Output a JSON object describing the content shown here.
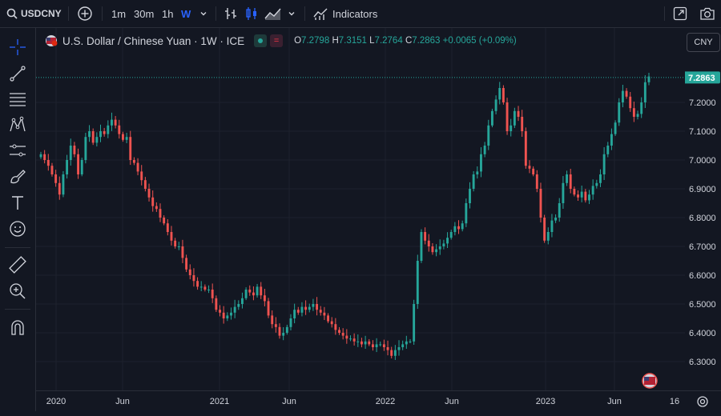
{
  "toolbar": {
    "symbol": "USDCNY",
    "intervals": [
      "1m",
      "30m",
      "1h",
      "W"
    ],
    "active_interval": "W",
    "indicators_label": "Indicators"
  },
  "legend": {
    "title": "U.S. Dollar / Chinese Yuan · 1W · ICE",
    "o_label": "O",
    "o_value": "7.2798",
    "h_label": "H",
    "h_value": "7.3151",
    "l_label": "L",
    "l_value": "7.2764",
    "c_label": "C",
    "c_value": "7.2863",
    "change": "+0.0065 (+0.09%)"
  },
  "currency_button": "CNY",
  "colors": {
    "up": "#26a69a",
    "down": "#ef5350",
    "accent": "#2962ff",
    "background": "#131722"
  },
  "icons": [
    "search-icon",
    "add-icon",
    "bar-style-icon",
    "candle-style-icon",
    "area-style-icon",
    "indicators-icon",
    "fullscreen-icon",
    "camera-icon",
    "crosshair-icon",
    "trendline-icon",
    "fib-icon",
    "pattern-icon",
    "measure-tool-icon",
    "brush-icon",
    "text-icon",
    "emoji-icon",
    "ruler-icon",
    "zoom-icon",
    "magnet-icon",
    "flag-icon",
    "settings-icon"
  ],
  "chart_data": {
    "type": "candlestick",
    "interval": "1W",
    "last_price": "7.2863",
    "y_ticks": [
      "7.2000",
      "7.1000",
      "7.0000",
      "6.9000",
      "6.8000",
      "6.7000",
      "6.6000",
      "6.5000",
      "6.4000",
      "6.3000"
    ],
    "x_ticks": [
      "2020",
      "Jun",
      "2021",
      "Jun",
      "2022",
      "Jun",
      "2023",
      "Jun",
      "16"
    ],
    "ylim": [
      6.25,
      7.35
    ],
    "grid": true,
    "closes": [
      7.02,
      7.0,
      6.98,
      6.95,
      6.92,
      6.88,
      6.95,
      7.0,
      7.05,
      7.02,
      6.95,
      7.0,
      7.08,
      7.1,
      7.06,
      7.08,
      7.1,
      7.09,
      7.12,
      7.14,
      7.12,
      7.09,
      7.07,
      7.08,
      7.0,
      6.99,
      6.96,
      6.93,
      6.9,
      6.87,
      6.84,
      6.83,
      6.8,
      6.78,
      6.75,
      6.72,
      6.7,
      6.7,
      6.66,
      6.62,
      6.6,
      6.58,
      6.56,
      6.56,
      6.55,
      6.55,
      6.52,
      6.48,
      6.47,
      6.45,
      6.46,
      6.47,
      6.49,
      6.5,
      6.52,
      6.55,
      6.54,
      6.53,
      6.56,
      6.53,
      6.51,
      6.46,
      6.43,
      6.42,
      6.39,
      6.4,
      6.42,
      6.45,
      6.48,
      6.47,
      6.49,
      6.48,
      6.49,
      6.5,
      6.48,
      6.47,
      6.46,
      6.44,
      6.43,
      6.41,
      6.4,
      6.39,
      6.38,
      6.38,
      6.37,
      6.37,
      6.36,
      6.37,
      6.36,
      6.35,
      6.36,
      6.36,
      6.35,
      6.34,
      6.32,
      6.34,
      6.35,
      6.36,
      6.37,
      6.37,
      6.5,
      6.65,
      6.75,
      6.72,
      6.7,
      6.68,
      6.69,
      6.7,
      6.71,
      6.73,
      6.75,
      6.77,
      6.76,
      6.78,
      6.85,
      6.9,
      6.95,
      6.96,
      7.02,
      7.05,
      7.12,
      7.17,
      7.21,
      7.25,
      7.2,
      7.1,
      7.12,
      7.17,
      7.15,
      7.1,
      6.98,
      6.97,
      6.95,
      6.9,
      6.8,
      6.72,
      6.75,
      6.79,
      6.8,
      6.85,
      6.92,
      6.95,
      6.9,
      6.88,
      6.87,
      6.89,
      6.86,
      6.88,
      6.91,
      6.92,
      6.95,
      7.02,
      7.05,
      7.09,
      7.13,
      7.2,
      7.24,
      7.22,
      7.18,
      7.15,
      7.16,
      7.2,
      7.27,
      7.29
    ]
  }
}
